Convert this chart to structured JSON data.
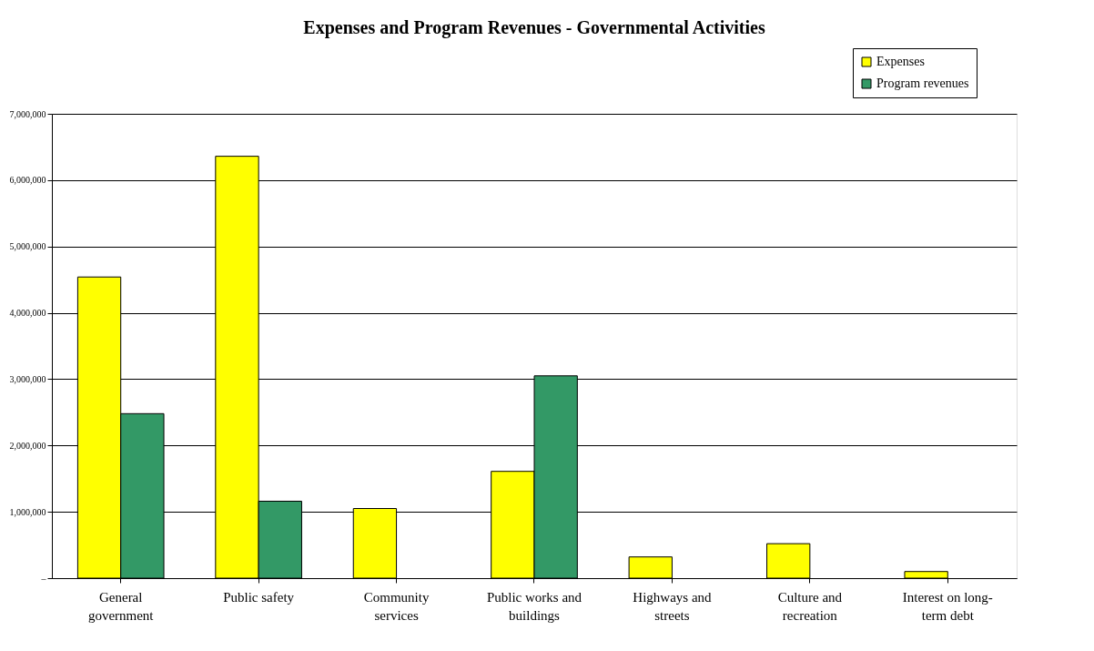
{
  "chart_data": {
    "type": "bar",
    "title": "Expenses and Program Revenues - Governmental  Activities",
    "categories": [
      "General government",
      "Public safety",
      "Community services",
      "Public works and buildings",
      "Highways and streets",
      "Culture and recreation",
      "Interest on long-term debt"
    ],
    "series": [
      {
        "name": "Expenses",
        "color": "#ffff00",
        "values": [
          4540000,
          6360000,
          1050000,
          1610000,
          320000,
          520000,
          100000
        ]
      },
      {
        "name": "Program revenues",
        "color": "#339966",
        "values": [
          2480000,
          1160000,
          null,
          3050000,
          null,
          null,
          null
        ]
      }
    ],
    "ylim": [
      0,
      7000000
    ],
    "yticks": [
      {
        "value": 0,
        "label": "–"
      },
      {
        "value": 1000000,
        "label": "1,000,000"
      },
      {
        "value": 2000000,
        "label": "2,000,000"
      },
      {
        "value": 3000000,
        "label": "3,000,000"
      },
      {
        "value": 4000000,
        "label": "4,000,000"
      },
      {
        "value": 5000000,
        "label": "5,000,000"
      },
      {
        "value": 6000000,
        "label": "6,000,000"
      },
      {
        "value": 7000000,
        "label": "7,000,000"
      }
    ],
    "grid": "y",
    "legend": "top right"
  }
}
